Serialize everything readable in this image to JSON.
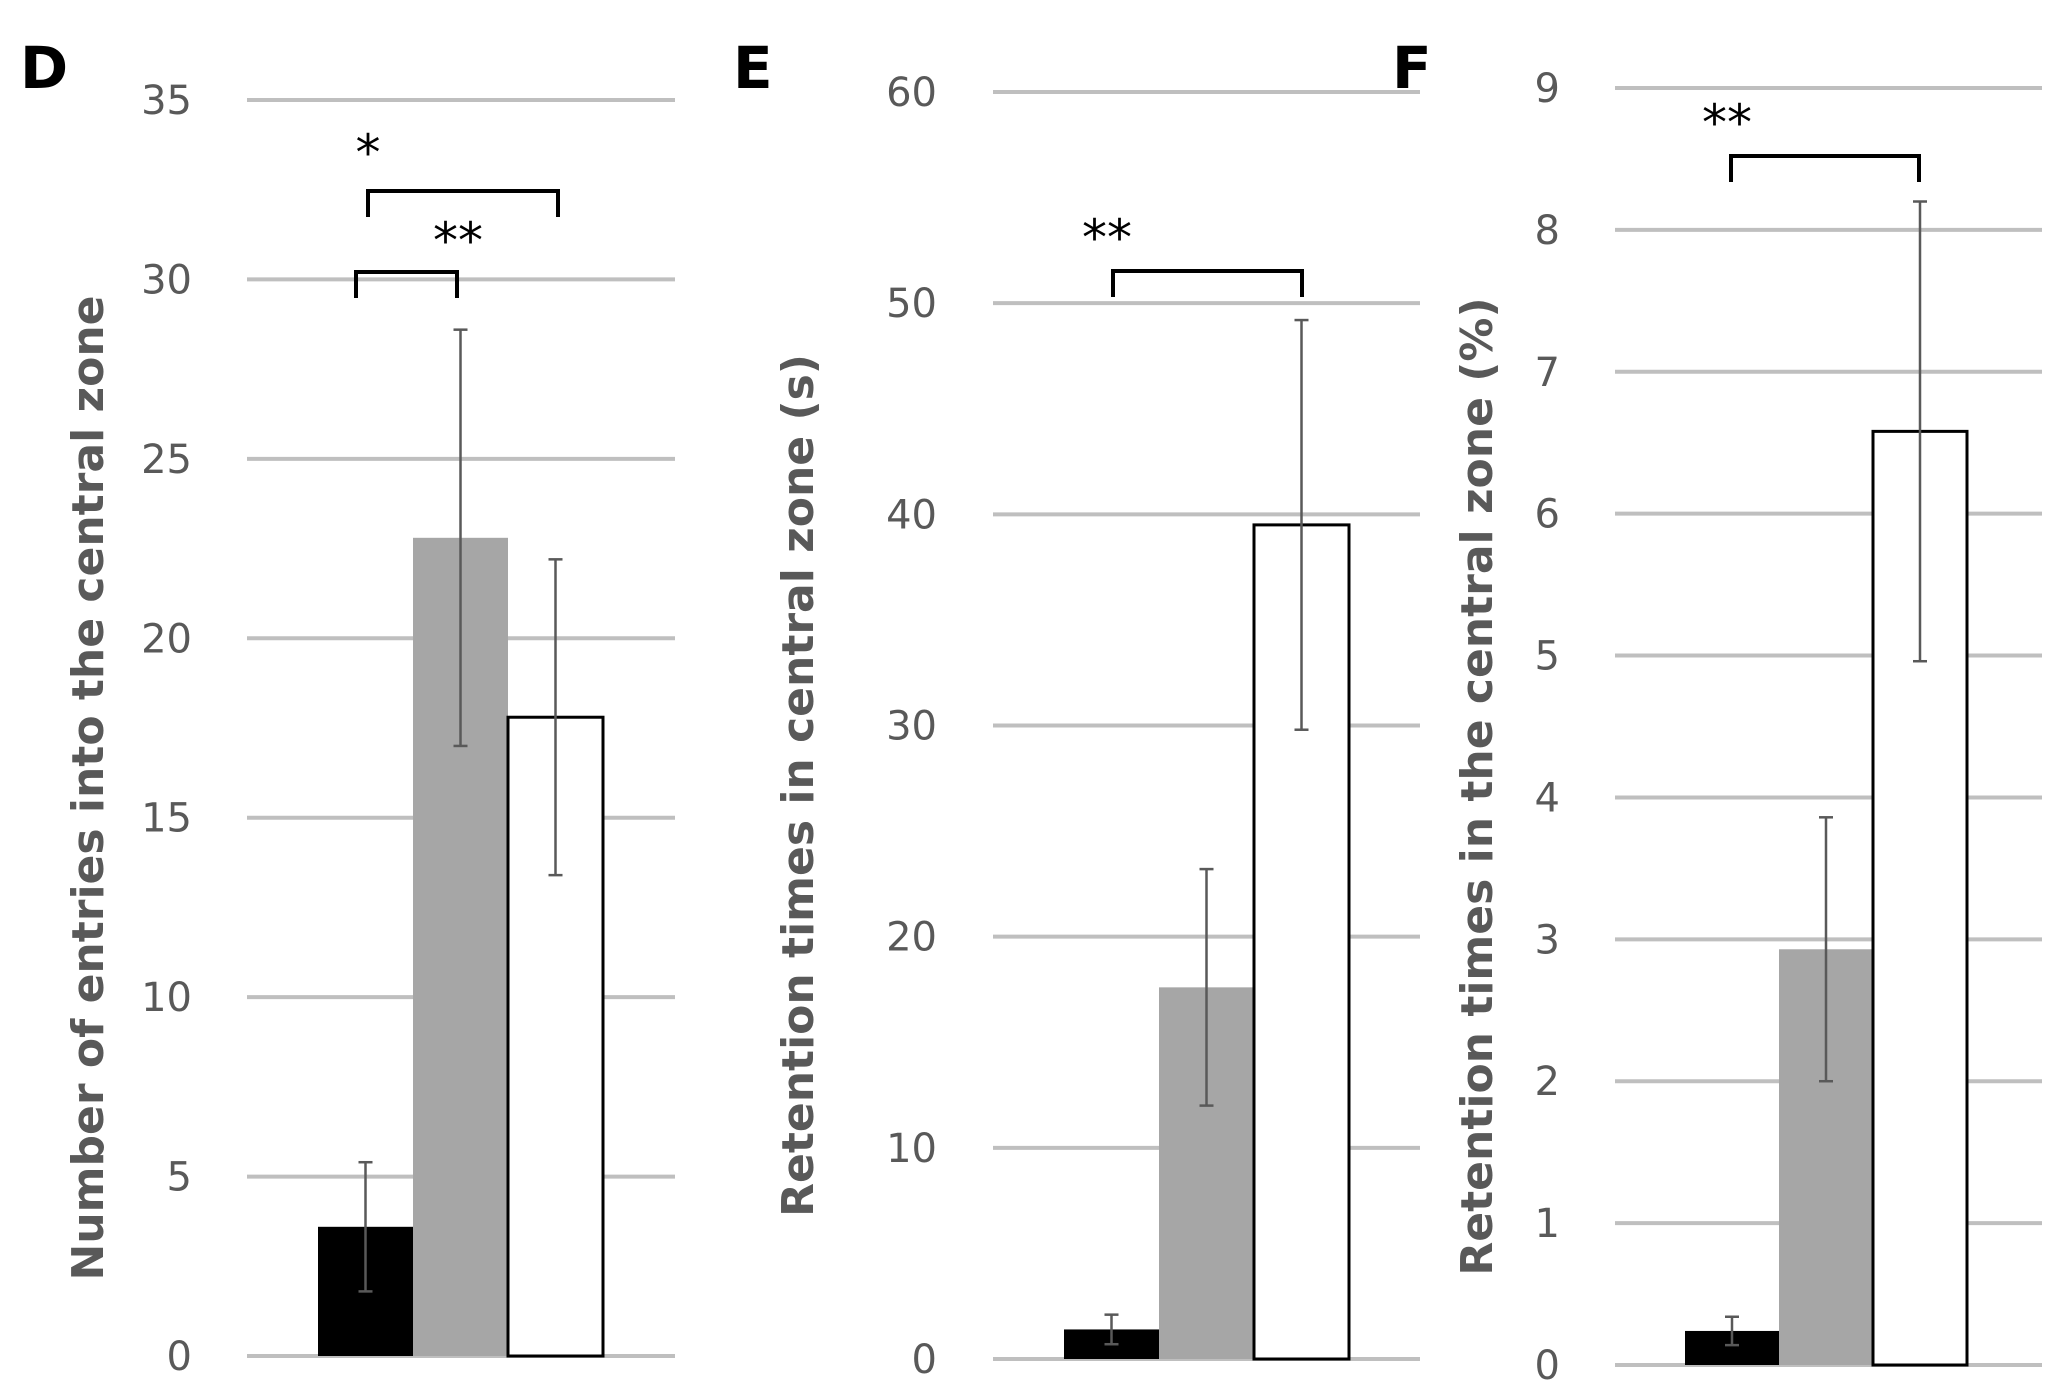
{
  "chart_data": [
    {
      "panel": "D",
      "type": "bar",
      "ylabel": "Number of entries into the central zone",
      "ylim": [
        0,
        35
      ],
      "yticks": [
        "0",
        "5",
        "10",
        "15",
        "20",
        "25",
        "30",
        "35"
      ],
      "series_colors": [
        "#000000",
        "#a6a6a6",
        "#ffffff"
      ],
      "values": [
        3.6,
        22.8,
        17.8
      ],
      "errors": [
        1.8,
        5.8,
        4.4
      ],
      "significance": [
        {
          "label": "*",
          "from": 0,
          "to": 2
        },
        {
          "label": "**",
          "from": 0,
          "to": 1
        }
      ]
    },
    {
      "panel": "E",
      "type": "bar",
      "ylabel": "Retention times in central zone (s)",
      "ylim": [
        0,
        60
      ],
      "yticks": [
        "0",
        "10",
        "20",
        "30",
        "40",
        "50",
        "60"
      ],
      "series_colors": [
        "#000000",
        "#a6a6a6",
        "#ffffff"
      ],
      "values": [
        1.4,
        17.6,
        39.5
      ],
      "errors": [
        0.7,
        5.6,
        9.7
      ],
      "significance": [
        {
          "label": "**",
          "from": 0,
          "to": 2
        }
      ]
    },
    {
      "panel": "F",
      "type": "bar",
      "ylabel": "Retention times in the central zone (%)",
      "ylim": [
        0,
        9
      ],
      "yticks": [
        "0",
        "1",
        "2",
        "3",
        "4",
        "5",
        "6",
        "7",
        "8",
        "9"
      ],
      "series_colors": [
        "#000000",
        "#a6a6a6",
        "#ffffff"
      ],
      "values": [
        0.24,
        2.93,
        6.58
      ],
      "errors": [
        0.1,
        0.93,
        1.62
      ],
      "significance": [
        {
          "label": "**",
          "from": 0,
          "to": 2
        }
      ]
    }
  ]
}
